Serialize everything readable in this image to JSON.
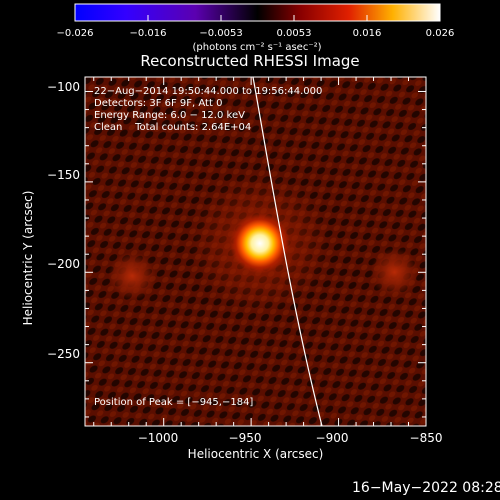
{
  "colorbar": {
    "tick_labels": [
      "−0.026",
      "−0.016",
      "−0.0053",
      "0.0053",
      "0.016",
      "0.026"
    ],
    "units_text": "(photons cm⁻² s⁻¹ asec⁻²)"
  },
  "image": {
    "title": "Reconstructed RHESSI Image",
    "info_lines": [
      "22−Aug−2014 19:50:44.000 to 19:56:44.000",
      "Detectors: 3F 6F 9F, Att 0",
      "Energy Range: 6.0 − 12.0 keV",
      "Clean    Total counts: 2.64E+04"
    ],
    "peak_text": "Position of Peak = [−945,−184]",
    "xlabel": "Heliocentric X (arcsec)",
    "ylabel": "Heliocentric Y (arcsec)",
    "x_ticks": [
      "−1000",
      "−950",
      "−900",
      "−850"
    ],
    "y_ticks": [
      "−100",
      "−150",
      "−200",
      "−250"
    ],
    "timestamp": "16−May−2022 08:28"
  },
  "plot": {
    "x_range": [
      -1045,
      -850
    ],
    "y_range": [
      -285,
      -92
    ],
    "x_tick_values": [
      -1000,
      -950,
      -900,
      -850
    ],
    "y_tick_values": [
      -100,
      -150,
      -200,
      -250
    ],
    "peak": [
      -945,
      -184
    ],
    "secondary_sources": [
      [
        -1018,
        -202
      ],
      [
        -868,
        -200
      ]
    ],
    "colors": {
      "low": "#0000ff",
      "mid": "#000000",
      "high": "#ffffff",
      "image_tint": "#5a0e00"
    }
  }
}
